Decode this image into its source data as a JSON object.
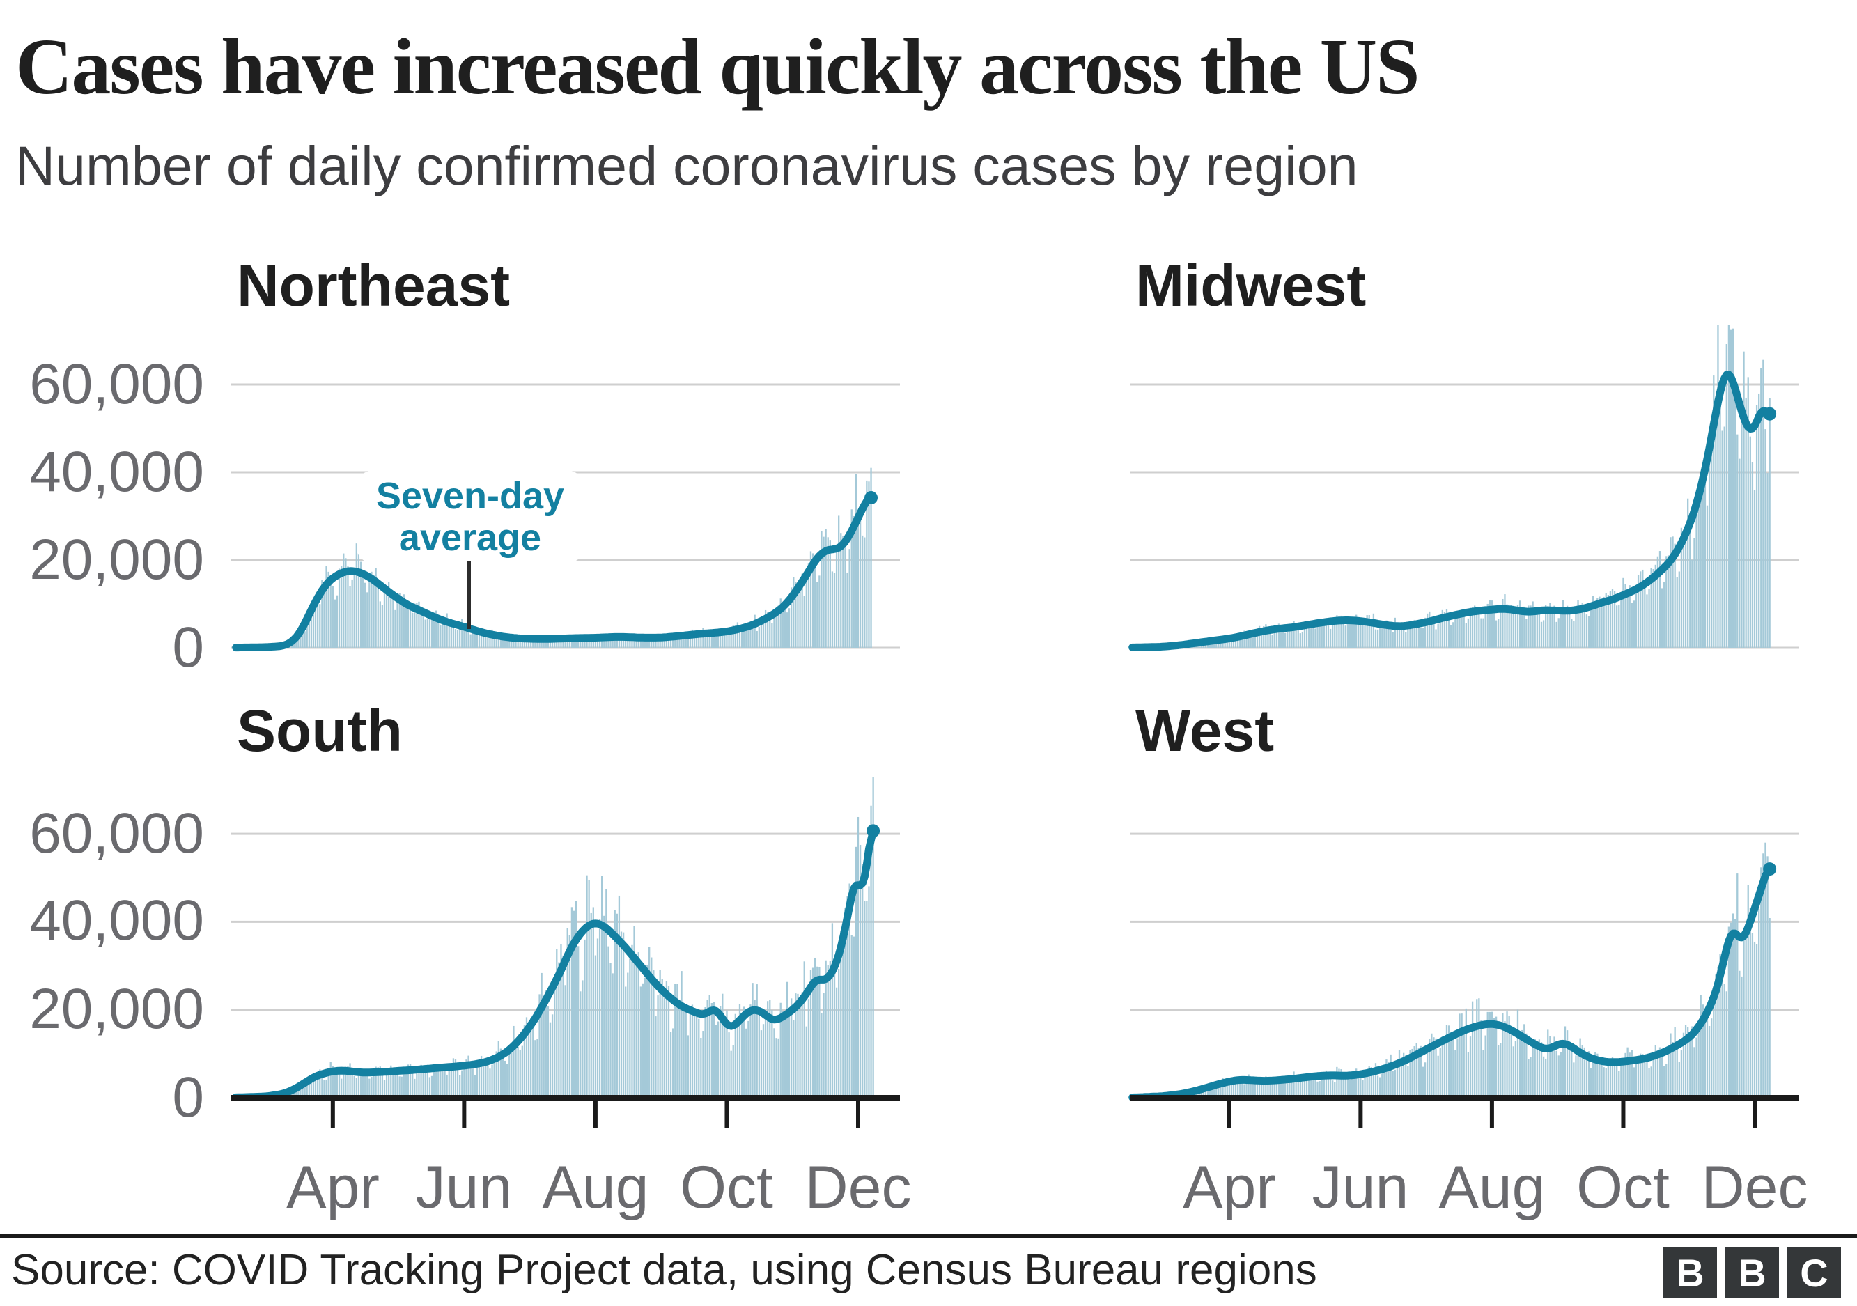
{
  "header": {
    "title": "Cases have increased quickly across the US",
    "subtitle": "Number of daily confirmed coronavirus cases by region"
  },
  "colors": {
    "bar": "#a4c9d8",
    "line": "#1380a1",
    "gridline": "#cfcfcf",
    "axis": "#1a1a1a",
    "axis_label": "#6a6a6e",
    "annotation_text": "#1380a1",
    "text": "#212121"
  },
  "axes": {
    "y_ticks": [
      "60,000",
      "40,000",
      "20,000",
      "0"
    ],
    "y_tick_values": [
      60000,
      40000,
      20000,
      0
    ],
    "x_ticks": [
      "Apr",
      "Jun",
      "Aug",
      "Oct",
      "Dec"
    ],
    "y_max_gridline": 60000,
    "grid": true
  },
  "annotation": {
    "line1": "Seven-day",
    "line2": "average",
    "target": "seven-day average line, Northeast panel, early June"
  },
  "footer": {
    "source": "Source: COVID Tracking Project data, using Census Bureau regions",
    "logo": [
      "B",
      "B",
      "C"
    ]
  },
  "chart_data": [
    {
      "type": "area",
      "region": "Northeast",
      "x_unit": "days since 1 Mar 2020",
      "x_months_shown": [
        "Apr",
        "Jun",
        "Aug",
        "Oct",
        "Dec"
      ],
      "ylim": [
        0,
        60000
      ],
      "bars": "daily confirmed cases (noisy around seven-day average)",
      "bar_peak_max": 41000,
      "seven_day_avg": [
        [
          -14,
          60
        ],
        [
          0,
          160
        ],
        [
          8,
          420
        ],
        [
          12,
          1300
        ],
        [
          16,
          3600
        ],
        [
          20,
          7600
        ],
        [
          24,
          11600
        ],
        [
          28,
          14600
        ],
        [
          32,
          16300
        ],
        [
          36,
          17300
        ],
        [
          40,
          17600
        ],
        [
          44,
          17100
        ],
        [
          48,
          16100
        ],
        [
          52,
          14700
        ],
        [
          56,
          13100
        ],
        [
          61,
          11300
        ],
        [
          66,
          9700
        ],
        [
          71,
          8600
        ],
        [
          76,
          7500
        ],
        [
          81,
          6400
        ],
        [
          86,
          5600
        ],
        [
          92,
          4800
        ],
        [
          97,
          4000
        ],
        [
          102,
          3300
        ],
        [
          107,
          2800
        ],
        [
          112,
          2400
        ],
        [
          118,
          2150
        ],
        [
          124,
          2050
        ],
        [
          130,
          2000
        ],
        [
          136,
          2100
        ],
        [
          142,
          2200
        ],
        [
          148,
          2250
        ],
        [
          153,
          2300
        ],
        [
          158,
          2400
        ],
        [
          163,
          2500
        ],
        [
          168,
          2450
        ],
        [
          173,
          2350
        ],
        [
          178,
          2300
        ],
        [
          184,
          2350
        ],
        [
          190,
          2600
        ],
        [
          196,
          2900
        ],
        [
          202,
          3200
        ],
        [
          208,
          3400
        ],
        [
          214,
          3700
        ],
        [
          220,
          4300
        ],
        [
          226,
          5200
        ],
        [
          232,
          6600
        ],
        [
          238,
          8400
        ],
        [
          242,
          10200
        ],
        [
          246,
          12800
        ],
        [
          250,
          15800
        ],
        [
          253,
          18200
        ],
        [
          256,
          20600
        ],
        [
          259,
          21900
        ],
        [
          262,
          22500
        ],
        [
          265,
          22400
        ],
        [
          268,
          23400
        ],
        [
          271,
          25600
        ],
        [
          274,
          28600
        ],
        [
          277,
          31800
        ],
        [
          279,
          33600
        ],
        [
          281,
          34800
        ]
      ]
    },
    {
      "type": "area",
      "region": "Midwest",
      "x_unit": "days since 1 Mar 2020",
      "x_months_shown": [
        "Apr",
        "Jun",
        "Aug",
        "Oct",
        "Dec"
      ],
      "ylim": [
        0,
        60000
      ],
      "bars": "daily confirmed cases (noisy around seven-day average)",
      "bar_peak_max": 73500,
      "seven_day_avg": [
        [
          -14,
          80
        ],
        [
          0,
          250
        ],
        [
          8,
          600
        ],
        [
          14,
          1000
        ],
        [
          20,
          1400
        ],
        [
          26,
          1800
        ],
        [
          31,
          2100
        ],
        [
          37,
          2700
        ],
        [
          43,
          3400
        ],
        [
          49,
          4000
        ],
        [
          55,
          4400
        ],
        [
          61,
          4700
        ],
        [
          67,
          5200
        ],
        [
          73,
          5700
        ],
        [
          79,
          6100
        ],
        [
          85,
          6300
        ],
        [
          90,
          6200
        ],
        [
          95,
          5900
        ],
        [
          100,
          5500
        ],
        [
          105,
          5100
        ],
        [
          109,
          4900
        ],
        [
          113,
          5000
        ],
        [
          118,
          5400
        ],
        [
          124,
          6000
        ],
        [
          130,
          6800
        ],
        [
          136,
          7500
        ],
        [
          142,
          8100
        ],
        [
          148,
          8500
        ],
        [
          153,
          8700
        ],
        [
          157,
          8900
        ],
        [
          161,
          8800
        ],
        [
          165,
          8500
        ],
        [
          169,
          8200
        ],
        [
          173,
          8300
        ],
        [
          177,
          8600
        ],
        [
          181,
          8500
        ],
        [
          184,
          8500
        ],
        [
          188,
          8400
        ],
        [
          192,
          8600
        ],
        [
          196,
          9000
        ],
        [
          200,
          9600
        ],
        [
          204,
          10300
        ],
        [
          209,
          11000
        ],
        [
          214,
          12000
        ],
        [
          220,
          13300
        ],
        [
          226,
          15200
        ],
        [
          231,
          17300
        ],
        [
          236,
          19800
        ],
        [
          240,
          22800
        ],
        [
          244,
          27000
        ],
        [
          248,
          32500
        ],
        [
          252,
          40500
        ],
        [
          255,
          48000
        ],
        [
          258,
          56500
        ],
        [
          260,
          60500
        ],
        [
          262,
          63300
        ],
        [
          264,
          62500
        ],
        [
          266,
          59000
        ],
        [
          268,
          55500
        ],
        [
          270,
          52000
        ],
        [
          272,
          49800
        ],
        [
          274,
          49200
        ],
        [
          276,
          51200
        ],
        [
          278,
          54300
        ],
        [
          279,
          55300
        ],
        [
          280,
          54200
        ],
        [
          282,
          52400
        ]
      ]
    },
    {
      "type": "area",
      "region": "South",
      "x_unit": "days since 1 Mar 2020",
      "x_months_shown": [
        "Apr",
        "Jun",
        "Aug",
        "Oct",
        "Dec"
      ],
      "ylim": [
        0,
        60000
      ],
      "bars": "daily confirmed cases (noisy around seven-day average)",
      "bar_peak_max": 73000,
      "seven_day_avg": [
        [
          -14,
          80
        ],
        [
          0,
          300
        ],
        [
          8,
          900
        ],
        [
          13,
          1900
        ],
        [
          18,
          3400
        ],
        [
          23,
          4900
        ],
        [
          28,
          5700
        ],
        [
          32,
          6100
        ],
        [
          36,
          6200
        ],
        [
          41,
          5900
        ],
        [
          46,
          5700
        ],
        [
          51,
          5800
        ],
        [
          56,
          5900
        ],
        [
          61,
          6100
        ],
        [
          68,
          6300
        ],
        [
          75,
          6600
        ],
        [
          82,
          6900
        ],
        [
          88,
          7100
        ],
        [
          92,
          7300
        ],
        [
          97,
          7600
        ],
        [
          102,
          8100
        ],
        [
          106,
          8800
        ],
        [
          110,
          9800
        ],
        [
          114,
          11300
        ],
        [
          118,
          13300
        ],
        [
          122,
          15800
        ],
        [
          126,
          18800
        ],
        [
          130,
          22300
        ],
        [
          134,
          26000
        ],
        [
          138,
          30000
        ],
        [
          141,
          33500
        ],
        [
          144,
          36000
        ],
        [
          147,
          38000
        ],
        [
          150,
          39300
        ],
        [
          153,
          39800
        ],
        [
          156,
          39300
        ],
        [
          159,
          38200
        ],
        [
          162,
          36700
        ],
        [
          166,
          34700
        ],
        [
          170,
          32400
        ],
        [
          174,
          30000
        ],
        [
          178,
          27600
        ],
        [
          181,
          25900
        ],
        [
          184,
          24400
        ],
        [
          188,
          22600
        ],
        [
          192,
          21100
        ],
        [
          196,
          20100
        ],
        [
          200,
          19300
        ],
        [
          203,
          18800
        ],
        [
          206,
          19600
        ],
        [
          208,
          20300
        ],
        [
          210,
          19600
        ],
        [
          212,
          17900
        ],
        [
          214,
          16500
        ],
        [
          216,
          15900
        ],
        [
          219,
          17000
        ],
        [
          222,
          18800
        ],
        [
          225,
          19900
        ],
        [
          228,
          20000
        ],
        [
          231,
          19300
        ],
        [
          234,
          17900
        ],
        [
          237,
          17600
        ],
        [
          240,
          18400
        ],
        [
          243,
          19400
        ],
        [
          246,
          20600
        ],
        [
          249,
          22200
        ],
        [
          252,
          24400
        ],
        [
          254,
          26000
        ],
        [
          256,
          27200
        ],
        [
          258,
          26800
        ],
        [
          260,
          26600
        ],
        [
          262,
          27800
        ],
        [
          265,
          30500
        ],
        [
          268,
          36000
        ],
        [
          270,
          41000
        ],
        [
          272,
          46000
        ],
        [
          273,
          48500
        ],
        [
          274,
          50300
        ],
        [
          275,
          49500
        ],
        [
          276,
          47000
        ],
        [
          277,
          46400
        ],
        [
          278,
          48500
        ],
        [
          279,
          52500
        ],
        [
          280,
          57000
        ],
        [
          281,
          61000
        ],
        [
          282,
          64000
        ]
      ]
    },
    {
      "type": "area",
      "region": "West",
      "x_unit": "days since 1 Mar 2020",
      "x_months_shown": [
        "Apr",
        "Jun",
        "Aug",
        "Oct",
        "Dec"
      ],
      "ylim": [
        0,
        60000
      ],
      "bars": "daily confirmed cases (noisy around seven-day average)",
      "bar_peak_max": 62000,
      "seven_day_avg": [
        [
          -14,
          60
        ],
        [
          0,
          350
        ],
        [
          8,
          800
        ],
        [
          14,
          1400
        ],
        [
          20,
          2200
        ],
        [
          26,
          3100
        ],
        [
          31,
          3700
        ],
        [
          36,
          4100
        ],
        [
          41,
          4000
        ],
        [
          46,
          3850
        ],
        [
          51,
          3900
        ],
        [
          56,
          4100
        ],
        [
          61,
          4300
        ],
        [
          67,
          4700
        ],
        [
          73,
          5000
        ],
        [
          79,
          5100
        ],
        [
          85,
          5000
        ],
        [
          90,
          5200
        ],
        [
          95,
          5600
        ],
        [
          100,
          6200
        ],
        [
          106,
          7100
        ],
        [
          112,
          8300
        ],
        [
          118,
          9800
        ],
        [
          124,
          11400
        ],
        [
          130,
          12900
        ],
        [
          136,
          14400
        ],
        [
          141,
          15500
        ],
        [
          146,
          16300
        ],
        [
          151,
          16800
        ],
        [
          155,
          16700
        ],
        [
          159,
          16100
        ],
        [
          163,
          15100
        ],
        [
          167,
          13900
        ],
        [
          171,
          12700
        ],
        [
          175,
          11600
        ],
        [
          178,
          11000
        ],
        [
          181,
          11400
        ],
        [
          184,
          12200
        ],
        [
          186,
          12500
        ],
        [
          189,
          11900
        ],
        [
          192,
          10900
        ],
        [
          195,
          9900
        ],
        [
          199,
          9000
        ],
        [
          203,
          8400
        ],
        [
          207,
          8100
        ],
        [
          211,
          8100
        ],
        [
          214,
          8200
        ],
        [
          219,
          8500
        ],
        [
          224,
          8900
        ],
        [
          229,
          9600
        ],
        [
          234,
          10600
        ],
        [
          239,
          11900
        ],
        [
          244,
          13400
        ],
        [
          248,
          15400
        ],
        [
          252,
          18400
        ],
        [
          255,
          21500
        ],
        [
          257,
          24000
        ],
        [
          259,
          27500
        ],
        [
          261,
          32000
        ],
        [
          263,
          36000
        ],
        [
          264,
          37800
        ],
        [
          265,
          38400
        ],
        [
          266,
          37800
        ],
        [
          267,
          36800
        ],
        [
          268,
          36000
        ],
        [
          269,
          35700
        ],
        [
          270,
          36300
        ],
        [
          272,
          38500
        ],
        [
          274,
          41500
        ],
        [
          276,
          44500
        ],
        [
          278,
          47500
        ],
        [
          280,
          50500
        ],
        [
          282,
          53500
        ]
      ]
    }
  ]
}
